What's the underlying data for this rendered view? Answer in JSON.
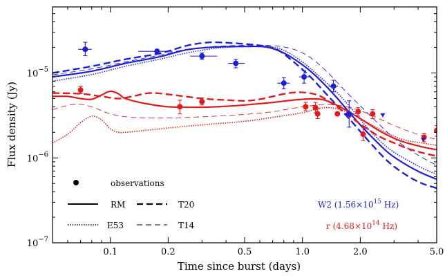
{
  "colors": {
    "W2": "#1f1fd6",
    "r": "#e01b1b",
    "axis": "#000000"
  },
  "chart_data": {
    "type": "line",
    "xlabel": "Time since burst (days)",
    "ylabel": "Flux density (Jy)",
    "xscale": "log",
    "yscale": "log",
    "xlim": [
      0.05,
      5.0
    ],
    "ylim": [
      1e-07,
      6e-05
    ],
    "grid": false,
    "x_ticks": [
      {
        "value": 0.1,
        "label": "0.1"
      },
      {
        "value": 0.2,
        "label": "0.2"
      },
      {
        "value": 0.5,
        "label": "0.5"
      },
      {
        "value": 1.0,
        "label": "1.0"
      },
      {
        "value": 2.0,
        "label": "2.0"
      },
      {
        "value": 5.0,
        "label": "5.0"
      }
    ],
    "y_ticks": [
      {
        "value": 1e-07,
        "base": "10",
        "exp": "−7"
      },
      {
        "value": 1e-06,
        "base": "10",
        "exp": "−6"
      },
      {
        "value": 1e-05,
        "base": "10",
        "exp": "−5"
      }
    ],
    "legend": {
      "placement": "bottom-left",
      "observations_label": "observations",
      "model_labels": {
        "RM": "RM",
        "T20": "T20",
        "E53": "E53",
        "T14": "T14"
      }
    },
    "band_labels": {
      "W2": {
        "prefix": "W2  (1.56×10",
        "exp": "15",
        "suffix": " Hz)"
      },
      "r": {
        "prefix": "r  (4.68×10",
        "exp": "14",
        "suffix": " Hz)"
      }
    },
    "observations": {
      "W2": [
        {
          "x": 0.074,
          "y": 1.9e-05,
          "xerr": [
            0.068,
            0.08
          ],
          "yerr": [
            1.6e-05,
            2.3e-05
          ]
        },
        {
          "x": 0.175,
          "y": 1.8e-05,
          "xerr": [
            0.14,
            0.21
          ],
          "yerr": [
            1.7e-05,
            1.9e-05
          ]
        },
        {
          "x": 0.3,
          "y": 1.58e-05,
          "xerr": [
            0.26,
            0.36
          ],
          "yerr": [
            1.45e-05,
            1.72e-05
          ]
        },
        {
          "x": 0.45,
          "y": 1.3e-05,
          "xerr": [
            0.41,
            0.5
          ],
          "yerr": [
            1.15e-05,
            1.45e-05
          ]
        },
        {
          "x": 0.8,
          "y": 7.6e-06,
          "xerr": [
            0.74,
            0.86
          ],
          "yerr": [
            6.5e-06,
            8.8e-06
          ]
        },
        {
          "x": 1.02,
          "y": 9e-06,
          "xerr": [
            0.96,
            1.09
          ],
          "yerr": [
            7.6e-06,
            1.06e-05
          ]
        },
        {
          "x": 1.45,
          "y": 7e-06,
          "xerr": [
            1.37,
            1.53
          ],
          "yerr": [
            6e-06,
            8.2e-06
          ]
        },
        {
          "x": 1.75,
          "y": 3.3e-06,
          "xerr": [
            1.65,
            1.85
          ],
          "yerr": [
            2.3e-06,
            4.7e-06
          ]
        }
      ],
      "W2_upper_limits": [
        {
          "x": 2.62,
          "y": 3.2e-06
        },
        {
          "x": 4.25,
          "y": 1.65e-06
        }
      ],
      "r": [
        {
          "x": 0.07,
          "y": 6.3e-06,
          "yerr": [
            5.7e-06,
            7e-06
          ]
        },
        {
          "x": 0.23,
          "y": 4e-06,
          "yerr": [
            3.3e-06,
            4.8e-06
          ]
        },
        {
          "x": 0.3,
          "y": 4.6e-06,
          "yerr": [
            4.2e-06,
            5.1e-06
          ]
        },
        {
          "x": 1.04,
          "y": 4e-06,
          "yerr": [
            3.6e-06,
            4.5e-06
          ]
        },
        {
          "x": 1.17,
          "y": 3.9e-06,
          "yerr": [
            3.4e-06,
            4.5e-06
          ]
        },
        {
          "x": 1.2,
          "y": 3.3e-06,
          "yerr": [
            2.9e-06,
            3.8e-06
          ]
        },
        {
          "x": 1.52,
          "y": 3.3e-06,
          "yerr": [
            3.2e-06,
            3.4e-06
          ]
        },
        {
          "x": 1.95,
          "y": 3.5e-06,
          "yerr": [
            3.1e-06,
            3.9e-06
          ]
        },
        {
          "x": 2.07,
          "y": 1.9e-06,
          "yerr": [
            1.6e-06,
            2.3e-06
          ]
        },
        {
          "x": 2.32,
          "y": 3.3e-06,
          "yerr": [
            2.9e-06,
            3.7e-06
          ]
        },
        {
          "x": 4.3,
          "y": 1.75e-06,
          "yerr": [
            1.55e-06,
            1.95e-06
          ]
        },
        {
          "x": 5.0,
          "y": 2.1e-06,
          "yerr": [
            1.8e-06,
            2.4e-06
          ]
        }
      ]
    },
    "series": [
      {
        "band": "W2",
        "model": "RM",
        "x": [
          0.05,
          0.08,
          0.12,
          0.18,
          0.25,
          0.35,
          0.5,
          0.65,
          0.8,
          1.0,
          1.2,
          1.5,
          1.8,
          2.2,
          2.8,
          3.5,
          4.2,
          5.0
        ],
        "y": [
          9e-06,
          1.05e-05,
          1.3e-05,
          1.55e-05,
          1.88e-05,
          2.02e-05,
          2.05e-05,
          2.02e-05,
          1.72e-05,
          1.25e-05,
          8.8e-06,
          5.2e-06,
          3.2e-06,
          1.95e-06,
          1.15e-06,
          8.2e-07,
          6.6e-07,
          5.6e-07
        ]
      },
      {
        "band": "W2",
        "model": "T20",
        "x": [
          0.05,
          0.08,
          0.12,
          0.18,
          0.25,
          0.3,
          0.35,
          0.5,
          0.65,
          0.75,
          0.9,
          1.1,
          1.4,
          1.8,
          2.2,
          2.8,
          3.5,
          4.2,
          5.0
        ],
        "y": [
          1e-05,
          1.2e-05,
          1.45e-05,
          1.7e-05,
          2.1e-05,
          2.25e-05,
          2.3e-05,
          2.2e-05,
          2.05e-05,
          1.85e-05,
          1.35e-05,
          9e-06,
          5e-06,
          2.7e-06,
          1.6e-06,
          9e-07,
          6.2e-07,
          5e-07,
          4.4e-07
        ]
      },
      {
        "band": "W2",
        "model": "E53",
        "x": [
          0.05,
          0.08,
          0.12,
          0.18,
          0.25,
          0.35,
          0.5,
          0.65,
          0.8,
          1.0,
          1.2,
          1.5,
          1.8,
          2.2,
          2.8,
          3.5,
          4.2,
          5.0
        ],
        "y": [
          8e-06,
          9.6e-06,
          1.2e-05,
          1.45e-05,
          1.72e-05,
          1.95e-05,
          2.05e-05,
          2.05e-05,
          1.85e-05,
          1.35e-05,
          9.5e-06,
          6e-06,
          3.8e-06,
          2.2e-06,
          1.3e-06,
          9.5e-07,
          7.6e-07,
          6.4e-07
        ]
      },
      {
        "band": "W2",
        "model": "T14",
        "x": [
          0.05,
          0.08,
          0.12,
          0.18,
          0.25,
          0.35,
          0.5,
          0.7,
          0.9,
          1.1,
          1.35,
          1.6,
          2.0,
          2.5,
          3.0,
          3.6,
          4.3,
          5.0
        ],
        "y": [
          9.5e-06,
          1.12e-05,
          1.35e-05,
          1.62e-05,
          1.9e-05,
          2.05e-05,
          2.12e-05,
          2.1e-05,
          1.9e-05,
          1.52e-05,
          1.02e-05,
          6.8e-06,
          4.1e-06,
          2.5e-06,
          1.7e-06,
          1.25e-06,
          9.8e-07,
          8.2e-07
        ]
      },
      {
        "band": "r",
        "model": "RM",
        "x": [
          0.05,
          0.06,
          0.07,
          0.08,
          0.09,
          0.1,
          0.11,
          0.12,
          0.15,
          0.2,
          0.3,
          0.4,
          0.5,
          0.7,
          0.9,
          1.1,
          1.3,
          1.6,
          2.0,
          2.5,
          3.0,
          3.5,
          4.2,
          5.0
        ],
        "y": [
          5.3e-06,
          5.3e-06,
          5e-06,
          4.9e-06,
          5.5e-06,
          6.1e-06,
          5.7e-06,
          5e-06,
          4.4e-06,
          4e-06,
          3.95e-06,
          4.05e-06,
          4.2e-06,
          4.5e-06,
          4.8e-06,
          4.95e-06,
          4.8e-06,
          3.9e-06,
          2.9e-06,
          2.1e-06,
          1.7e-06,
          1.5e-06,
          1.35e-06,
          1.25e-06
        ]
      },
      {
        "band": "r",
        "model": "T20",
        "x": [
          0.05,
          0.07,
          0.09,
          0.11,
          0.13,
          0.16,
          0.2,
          0.3,
          0.4,
          0.5,
          0.6,
          0.7,
          0.85,
          1.0,
          1.2,
          1.4,
          1.7,
          2.0,
          2.5,
          3.0,
          3.5,
          4.2,
          5.0
        ],
        "y": [
          5.8e-06,
          5.7e-06,
          5.3e-06,
          5e-06,
          5.3e-06,
          5.8e-06,
          5.6e-06,
          5e-06,
          4.8e-06,
          4.7e-06,
          4.9e-06,
          5.3e-06,
          5.8e-06,
          5.9e-06,
          5.5e-06,
          4.5e-06,
          3.3e-06,
          2.5e-06,
          1.8e-06,
          1.5e-06,
          1.3e-06,
          1.15e-06,
          1.05e-06
        ]
      },
      {
        "band": "r",
        "model": "E53",
        "x": [
          0.05,
          0.06,
          0.07,
          0.08,
          0.09,
          0.1,
          0.11,
          0.12,
          0.15,
          0.2,
          0.3,
          0.5,
          0.7,
          1.0,
          1.2,
          1.4,
          1.7,
          2.0,
          2.5,
          3.0,
          3.5,
          4.2,
          5.0
        ],
        "y": [
          1.5e-06,
          1.9e-06,
          2.6e-06,
          3.1e-06,
          2.8e-06,
          2.2e-06,
          2e-06,
          2e-06,
          2.1e-06,
          2.25e-06,
          2.45e-06,
          2.7e-06,
          3e-06,
          3.4e-06,
          3.8e-06,
          3.9e-06,
          3.5e-06,
          2.9e-06,
          2.2e-06,
          1.8e-06,
          1.6e-06,
          1.5e-06,
          1.4e-06
        ]
      },
      {
        "band": "r",
        "model": "T14",
        "x": [
          0.05,
          0.065,
          0.08,
          0.1,
          0.13,
          0.2,
          0.3,
          0.5,
          0.7,
          0.9,
          1.1,
          1.3,
          1.6,
          2.0,
          2.5,
          3.0,
          3.6,
          4.3,
          5.0
        ],
        "y": [
          3.7e-06,
          4.3e-06,
          4e-06,
          3.3e-06,
          3e-06,
          2.95e-06,
          3.05e-06,
          3.25e-06,
          3.5e-06,
          3.85e-06,
          4.1e-06,
          4.25e-06,
          4.1e-06,
          3.6e-06,
          2.9e-06,
          2.4e-06,
          2.05e-06,
          1.8e-06,
          1.65e-06
        ]
      }
    ]
  }
}
